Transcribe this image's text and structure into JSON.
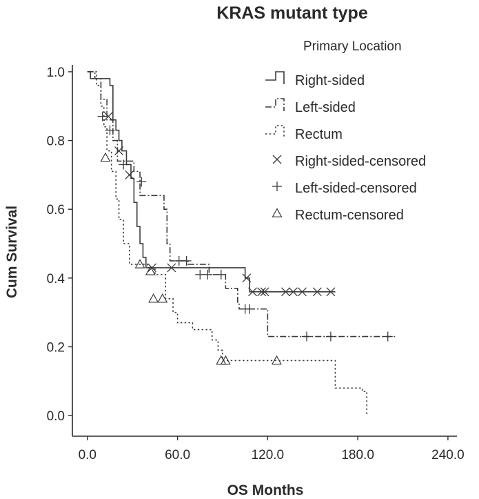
{
  "chart_data": {
    "type": "line",
    "subtype": "kaplan-meier-survival",
    "title": "KRAS mutant type",
    "xlabel": "OS Months",
    "ylabel": "Cum Survival",
    "xlim": [
      -10,
      246
    ],
    "ylim": [
      -0.06,
      1.02
    ],
    "xticks": [
      0,
      60,
      120,
      180,
      240
    ],
    "xtick_labels": [
      "0.0",
      "60.0",
      "120.0",
      "180.0",
      "240.0"
    ],
    "yticks": [
      0.0,
      0.2,
      0.4,
      0.6,
      0.8,
      1.0
    ],
    "ytick_labels": [
      "0.0",
      "0.2",
      "0.4",
      "0.6",
      "0.8",
      "1.0"
    ],
    "grid": false,
    "legend": {
      "title": "Primary Location",
      "placement": "top-right",
      "entries": [
        "Right-sided",
        "Left-sided",
        "Rectum",
        "Right-sided-censored",
        "Left-sided-censored",
        "Rectum-censored"
      ]
    },
    "series": [
      {
        "name": "Right-sided",
        "style": "solid",
        "marker": "x",
        "color": "#3a3a3a",
        "steps": [
          [
            0,
            1.0
          ],
          [
            2,
            0.98
          ],
          [
            15,
            0.96
          ],
          [
            17,
            0.86
          ],
          [
            19,
            0.83
          ],
          [
            21,
            0.8
          ],
          [
            23,
            0.77
          ],
          [
            26,
            0.73
          ],
          [
            29,
            0.69
          ],
          [
            31,
            0.62
          ],
          [
            33,
            0.55
          ],
          [
            35,
            0.5
          ],
          [
            37,
            0.46
          ],
          [
            39,
            0.43
          ],
          [
            105,
            0.4
          ],
          [
            108,
            0.36
          ],
          [
            165,
            0.36
          ]
        ],
        "censored": [
          [
            14,
            0.87
          ],
          [
            21,
            0.77
          ],
          [
            28,
            0.7
          ],
          [
            43,
            0.43
          ],
          [
            56,
            0.43
          ],
          [
            106,
            0.4
          ],
          [
            110,
            0.36
          ],
          [
            116,
            0.36
          ],
          [
            118,
            0.36
          ],
          [
            132,
            0.36
          ],
          [
            137,
            0.36
          ],
          [
            143,
            0.36
          ],
          [
            153,
            0.36
          ],
          [
            162,
            0.36
          ]
        ]
      },
      {
        "name": "Left-sided",
        "style": "dash-dot",
        "marker": "+",
        "color": "#3a3a3a",
        "steps": [
          [
            0,
            1.0
          ],
          [
            5,
            0.98
          ],
          [
            9,
            0.92
          ],
          [
            13,
            0.86
          ],
          [
            17,
            0.8
          ],
          [
            20,
            0.74
          ],
          [
            31,
            0.71
          ],
          [
            35,
            0.64
          ],
          [
            51,
            0.6
          ],
          [
            53,
            0.5
          ],
          [
            55,
            0.45
          ],
          [
            67,
            0.44
          ],
          [
            81,
            0.41
          ],
          [
            92,
            0.37
          ],
          [
            100,
            0.33
          ],
          [
            101,
            0.31
          ],
          [
            108,
            0.31
          ],
          [
            120,
            0.23
          ],
          [
            206,
            0.23
          ]
        ],
        "censored": [
          [
            10,
            0.87
          ],
          [
            15,
            0.83
          ],
          [
            24,
            0.73
          ],
          [
            36,
            0.68
          ],
          [
            61,
            0.45
          ],
          [
            66,
            0.45
          ],
          [
            75,
            0.41
          ],
          [
            80,
            0.41
          ],
          [
            89,
            0.41
          ],
          [
            105,
            0.31
          ],
          [
            108,
            0.31
          ],
          [
            146,
            0.23
          ],
          [
            162,
            0.23
          ],
          [
            200,
            0.23
          ]
        ]
      },
      {
        "name": "Rectum",
        "style": "dotted",
        "marker": "triangle",
        "color": "#3a3a3a",
        "steps": [
          [
            0,
            1.0
          ],
          [
            6,
            0.96
          ],
          [
            9,
            0.9
          ],
          [
            11,
            0.84
          ],
          [
            13,
            0.77
          ],
          [
            16,
            0.71
          ],
          [
            19,
            0.63
          ],
          [
            21,
            0.57
          ],
          [
            24,
            0.5
          ],
          [
            28,
            0.44
          ],
          [
            35,
            0.44
          ],
          [
            40,
            0.43
          ],
          [
            45,
            0.41
          ],
          [
            52,
            0.34
          ],
          [
            57,
            0.3
          ],
          [
            60,
            0.27
          ],
          [
            70,
            0.25
          ],
          [
            83,
            0.22
          ],
          [
            87,
            0.19
          ],
          [
            90,
            0.16
          ],
          [
            160,
            0.16
          ],
          [
            165,
            0.08
          ],
          [
            183,
            0.07
          ],
          [
            186,
            0.0
          ]
        ],
        "censored": [
          [
            12,
            0.75
          ],
          [
            35,
            0.44
          ],
          [
            42,
            0.42
          ],
          [
            44,
            0.34
          ],
          [
            50,
            0.34
          ],
          [
            89,
            0.16
          ],
          [
            92,
            0.16
          ],
          [
            126,
            0.16
          ]
        ]
      }
    ]
  }
}
